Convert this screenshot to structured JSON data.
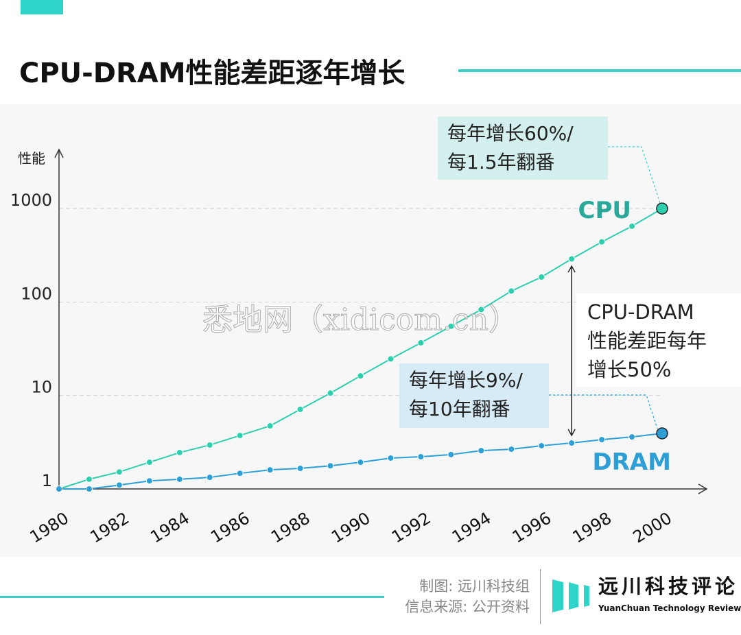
{
  "title": "CPU-DRAM性能差距逐年增长",
  "annotations": {
    "cpu_note": [
      "每年增长60%/",
      "每1.5年翻番"
    ],
    "dram_note": [
      "每年增长9%/",
      "每10年翻番"
    ],
    "gap_note": [
      "CPU-DRAM",
      "性能差距每年",
      "增长50%"
    ]
  },
  "watermark": "悉地网（xidicom.cn）",
  "footer": {
    "credit_chart": "制图: 远川科技组",
    "credit_source": "信息来源: 公开资料",
    "logo_cn": "远川科技评论",
    "logo_en": "YuanChuan Technology Review"
  },
  "colors": {
    "accent": "#3fcfcb",
    "cpu": "#2ecfae",
    "cpu_label": "#2aa89a",
    "dram": "#2e9fd6"
  },
  "chart_data": {
    "type": "line",
    "title": "CPU-DRAM性能差距逐年增长",
    "xlabel": "",
    "ylabel": "性能",
    "yscale": "log",
    "ylim": [
      1,
      1000
    ],
    "xlim": [
      1980,
      2000
    ],
    "grid": "horizontal dashed",
    "x_ticks": [
      "1980",
      "1982",
      "1984",
      "1986",
      "1988",
      "1990",
      "1992",
      "1994",
      "1996",
      "1998",
      "2000"
    ],
    "y_ticks": [
      "1",
      "10",
      "100",
      "1000"
    ],
    "x": [
      1980,
      1981,
      1982,
      1983,
      1984,
      1985,
      1986,
      1987,
      1988,
      1989,
      1990,
      1991,
      1992,
      1993,
      1994,
      1995,
      1996,
      1997,
      1998,
      1999,
      2000
    ],
    "series": [
      {
        "name": "CPU",
        "values": [
          1,
          1.27,
          1.52,
          1.93,
          2.45,
          2.95,
          3.73,
          4.73,
          7.1,
          10.6,
          16.2,
          24.6,
          36.6,
          55,
          83,
          131,
          185,
          289,
          440,
          647,
          1000
        ]
      },
      {
        "name": "DRAM",
        "values": [
          1,
          1.0,
          1.1,
          1.22,
          1.27,
          1.33,
          1.47,
          1.6,
          1.66,
          1.77,
          1.93,
          2.14,
          2.21,
          2.33,
          2.57,
          2.66,
          2.9,
          3.1,
          3.37,
          3.6,
          3.93
        ]
      }
    ]
  }
}
